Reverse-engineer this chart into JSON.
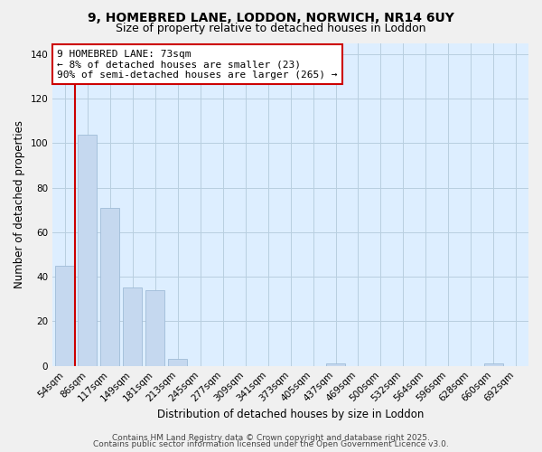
{
  "title": "9, HOMEBRED LANE, LODDON, NORWICH, NR14 6UY",
  "subtitle": "Size of property relative to detached houses in Loddon",
  "xlabel": "Distribution of detached houses by size in Loddon",
  "ylabel": "Number of detached properties",
  "categories": [
    "54sqm",
    "86sqm",
    "117sqm",
    "149sqm",
    "181sqm",
    "213sqm",
    "245sqm",
    "277sqm",
    "309sqm",
    "341sqm",
    "373sqm",
    "405sqm",
    "437sqm",
    "469sqm",
    "500sqm",
    "532sqm",
    "564sqm",
    "596sqm",
    "628sqm",
    "660sqm",
    "692sqm"
  ],
  "values": [
    45,
    104,
    71,
    35,
    34,
    3,
    0,
    0,
    0,
    0,
    0,
    0,
    1,
    0,
    0,
    0,
    0,
    0,
    0,
    1,
    0
  ],
  "bar_color": "#c5d8ef",
  "bar_edge_color": "#a0bcd8",
  "marker_color": "#cc0000",
  "ylim": [
    0,
    145
  ],
  "yticks": [
    0,
    20,
    40,
    60,
    80,
    100,
    120,
    140
  ],
  "annotation_title": "9 HOMEBRED LANE: 73sqm",
  "annotation_line1": "← 8% of detached houses are smaller (23)",
  "annotation_line2": "90% of semi-detached houses are larger (265) →",
  "footer1": "Contains HM Land Registry data © Crown copyright and database right 2025.",
  "footer2": "Contains public sector information licensed under the Open Government Licence v3.0.",
  "bg_color": "#f0f0f0",
  "plot_bg_color": "#ddeeff",
  "grid_color": "#b8cfe0",
  "title_fontsize": 10,
  "subtitle_fontsize": 9,
  "axis_label_fontsize": 8.5,
  "tick_fontsize": 7.5,
  "annotation_fontsize": 8,
  "footer_fontsize": 6.5
}
